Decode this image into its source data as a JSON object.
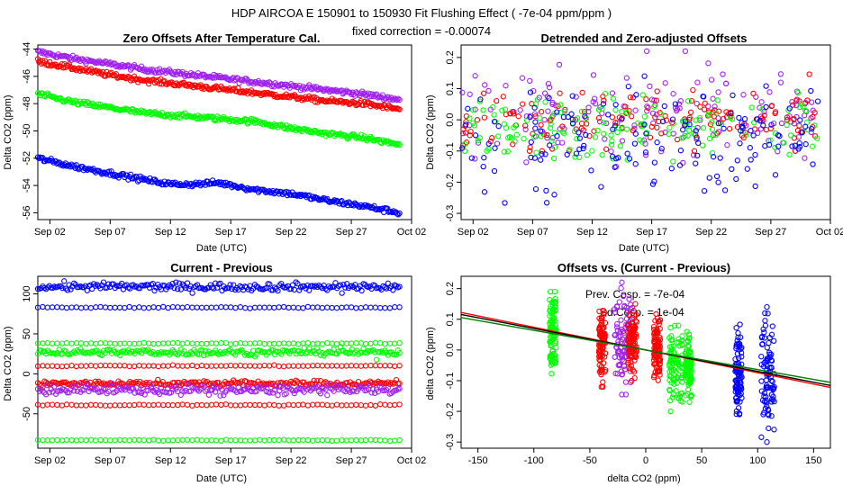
{
  "figure": {
    "title": "HDP   AIRCOA E   150901 to 150930   Fit Flushing Effect ( -7e-04 ppm/ppm )",
    "subtitle": "fixed correction = -0.00074"
  },
  "chart_data": [
    {
      "id": "zero-offsets",
      "type": "scatter",
      "title": "Zero Offsets After Temperature Cal.",
      "xlabel": "Date (UTC)",
      "ylabel": "Delta CO2 (ppm)",
      "xlim": [
        0,
        31
      ],
      "ylim": [
        -56.5,
        -43.7
      ],
      "xticks": [
        1,
        6,
        11,
        16,
        21,
        26,
        31
      ],
      "xtick_labels": [
        "Sep 02",
        "Sep 07",
        "Sep 12",
        "Sep 17",
        "Sep 22",
        "Sep 27",
        "Oct 02"
      ],
      "yticks": [
        -56,
        -54,
        -52,
        -50,
        -48,
        -46,
        -44
      ],
      "ytick_labels": [
        "-56",
        "-54",
        "-52",
        "-50",
        "-48",
        "-46",
        "-44"
      ],
      "series": [
        {
          "name": "purple",
          "color": "#a020f0",
          "x": [
            0,
            3,
            6,
            9,
            12,
            15,
            18,
            21,
            24,
            27,
            30
          ],
          "y": [
            -44.2,
            -44.7,
            -45.1,
            -45.5,
            -45.8,
            -46.1,
            -46.4,
            -46.7,
            -47.0,
            -47.3,
            -47.7
          ]
        },
        {
          "name": "red",
          "color": "#ff0000",
          "x": [
            0,
            3,
            6,
            9,
            12,
            15,
            18,
            21,
            24,
            27,
            30
          ],
          "y": [
            -44.9,
            -45.4,
            -45.9,
            -46.3,
            -46.6,
            -46.9,
            -47.2,
            -47.5,
            -47.8,
            -48.0,
            -48.4
          ]
        },
        {
          "name": "green",
          "color": "#00ff00",
          "x": [
            0,
            3,
            6,
            9,
            12,
            15,
            18,
            21,
            24,
            27,
            30
          ],
          "y": [
            -47.3,
            -47.9,
            -48.3,
            -48.7,
            -48.9,
            -49.1,
            -49.3,
            -49.8,
            -50.2,
            -50.5,
            -51.0
          ]
        },
        {
          "name": "blue",
          "color": "#0000ff",
          "x": [
            0,
            3,
            6,
            9,
            11,
            13,
            15,
            18,
            21,
            24,
            27,
            30
          ],
          "y": [
            -52.0,
            -52.6,
            -53.1,
            -53.6,
            -53.9,
            -53.9,
            -53.8,
            -54.3,
            -54.6,
            -55.1,
            -55.5,
            -56.0
          ]
        }
      ]
    },
    {
      "id": "detrended",
      "type": "scatter",
      "title": "Detrended and Zero-adjusted Offsets",
      "xlabel": "Date (UTC)",
      "ylabel": "Delta CO2 (ppm)",
      "xlim": [
        0,
        31
      ],
      "ylim": [
        -0.32,
        0.24
      ],
      "xticks": [
        1,
        6,
        11,
        16,
        21,
        26,
        31
      ],
      "xtick_labels": [
        "Sep 02",
        "Sep 07",
        "Sep 12",
        "Sep 17",
        "Sep 22",
        "Sep 27",
        "Oct 02"
      ],
      "yticks": [
        -0.3,
        -0.2,
        -0.1,
        0.0,
        0.1,
        0.2
      ],
      "ytick_labels": [
        "-0.3",
        "-0.2",
        "-0.1",
        "0.0",
        "0.1",
        "0.2"
      ],
      "series": [
        {
          "name": "purple",
          "color": "#a020f0",
          "center": 0.03,
          "spread": 0.08,
          "range": [
            -0.15,
            0.22
          ]
        },
        {
          "name": "red",
          "color": "#ff0000",
          "center": 0.0,
          "spread": 0.05,
          "range": [
            -0.1,
            0.15
          ]
        },
        {
          "name": "green",
          "color": "#00ff00",
          "center": -0.02,
          "spread": 0.05,
          "range": [
            -0.2,
            0.18
          ]
        },
        {
          "name": "blue",
          "color": "#0000ff",
          "center": -0.07,
          "spread": 0.09,
          "range": [
            -0.3,
            0.14
          ]
        }
      ]
    },
    {
      "id": "current-previous",
      "type": "scatter",
      "title": "Current - Previous",
      "xlabel": "Date (UTC)",
      "ylabel": "Delta CO2 (ppm)",
      "xlim": [
        0,
        31
      ],
      "ylim": [
        -93,
        122
      ],
      "xticks": [
        1,
        6,
        11,
        16,
        21,
        26,
        31
      ],
      "xtick_labels": [
        "Sep 02",
        "Sep 07",
        "Sep 12",
        "Sep 17",
        "Sep 22",
        "Sep 27",
        "Oct 02"
      ],
      "yticks": [
        -50,
        0,
        50,
        100
      ],
      "ytick_labels": [
        "-50",
        "0",
        "50",
        "100"
      ],
      "levels": [
        {
          "color": "#0000ff",
          "y": 109,
          "jitter": 2.5,
          "dense": true
        },
        {
          "color": "#0000ff",
          "y": 83,
          "jitter": 0.4,
          "dense": false
        },
        {
          "color": "#00ff00",
          "y": 38,
          "jitter": 0.4,
          "dense": false
        },
        {
          "color": "#00ff00",
          "y": 27,
          "jitter": 2.0,
          "dense": true
        },
        {
          "color": "#ff0000",
          "y": 10,
          "jitter": 0.4,
          "dense": false
        },
        {
          "color": "#ff0000",
          "y": -12,
          "jitter": 1.8,
          "dense": true
        },
        {
          "color": "#a020f0",
          "y": -20,
          "jitter": 3.0,
          "dense": true
        },
        {
          "color": "#ff0000",
          "y": -39,
          "jitter": 0.4,
          "dense": false
        },
        {
          "color": "#00ff00",
          "y": -83,
          "jitter": 0.4,
          "dense": false
        }
      ]
    },
    {
      "id": "offsets-vs-diff",
      "type": "scatter",
      "title": "Offsets vs. (Current - Previous)",
      "xlabel": "delta CO2 (ppm)",
      "ylabel": "delta CO2 (ppm)",
      "xlim": [
        -165,
        165
      ],
      "ylim": [
        -0.32,
        0.24
      ],
      "xticks": [
        -150,
        -100,
        -50,
        0,
        50,
        100,
        150
      ],
      "xtick_labels": [
        "-150",
        "-100",
        "-50",
        "0",
        "50",
        "100",
        "150"
      ],
      "yticks": [
        -0.3,
        -0.2,
        -0.1,
        0.0,
        0.1,
        0.2
      ],
      "ytick_labels": [
        "-0.3",
        "-0.2",
        "-0.1",
        "0.0",
        "0.1",
        "0.2"
      ],
      "annotations": [
        "Prev. Cosp. = -7e-04",
        "Sd.Cosp. = 1e-04"
      ],
      "clusters": [
        {
          "color": "#00ff00",
          "x": -83,
          "xspread": 3,
          "yrange": [
            -0.08,
            0.19
          ]
        },
        {
          "color": "#ff0000",
          "x": -39,
          "xspread": 3,
          "yrange": [
            -0.12,
            0.17
          ]
        },
        {
          "color": "#a020f0",
          "x": -20,
          "xspread": 8,
          "yrange": [
            -0.15,
            0.22
          ]
        },
        {
          "color": "#ff0000",
          "x": -12,
          "xspread": 4,
          "yrange": [
            -0.1,
            0.15
          ]
        },
        {
          "color": "#ff0000",
          "x": 10,
          "xspread": 3,
          "yrange": [
            -0.1,
            0.12
          ]
        },
        {
          "color": "#00ff00",
          "x": 27,
          "xspread": 6,
          "yrange": [
            -0.2,
            0.1
          ]
        },
        {
          "color": "#00ff00",
          "x": 38,
          "xspread": 3,
          "yrange": [
            -0.17,
            0.06
          ]
        },
        {
          "color": "#0000ff",
          "x": 83,
          "xspread": 3,
          "yrange": [
            -0.21,
            0.09
          ]
        },
        {
          "color": "#0000ff",
          "x": 109,
          "xspread": 6,
          "yrange": [
            -0.3,
            0.14
          ]
        }
      ],
      "fit_lines": [
        {
          "color": "#ff0000",
          "slope": -0.00074,
          "intercept": 0.0
        },
        {
          "color": "#000000",
          "slope": -0.0007,
          "intercept": 0.0
        },
        {
          "color": "#008000",
          "slope": -0.00064,
          "intercept": 0.0
        }
      ]
    }
  ]
}
